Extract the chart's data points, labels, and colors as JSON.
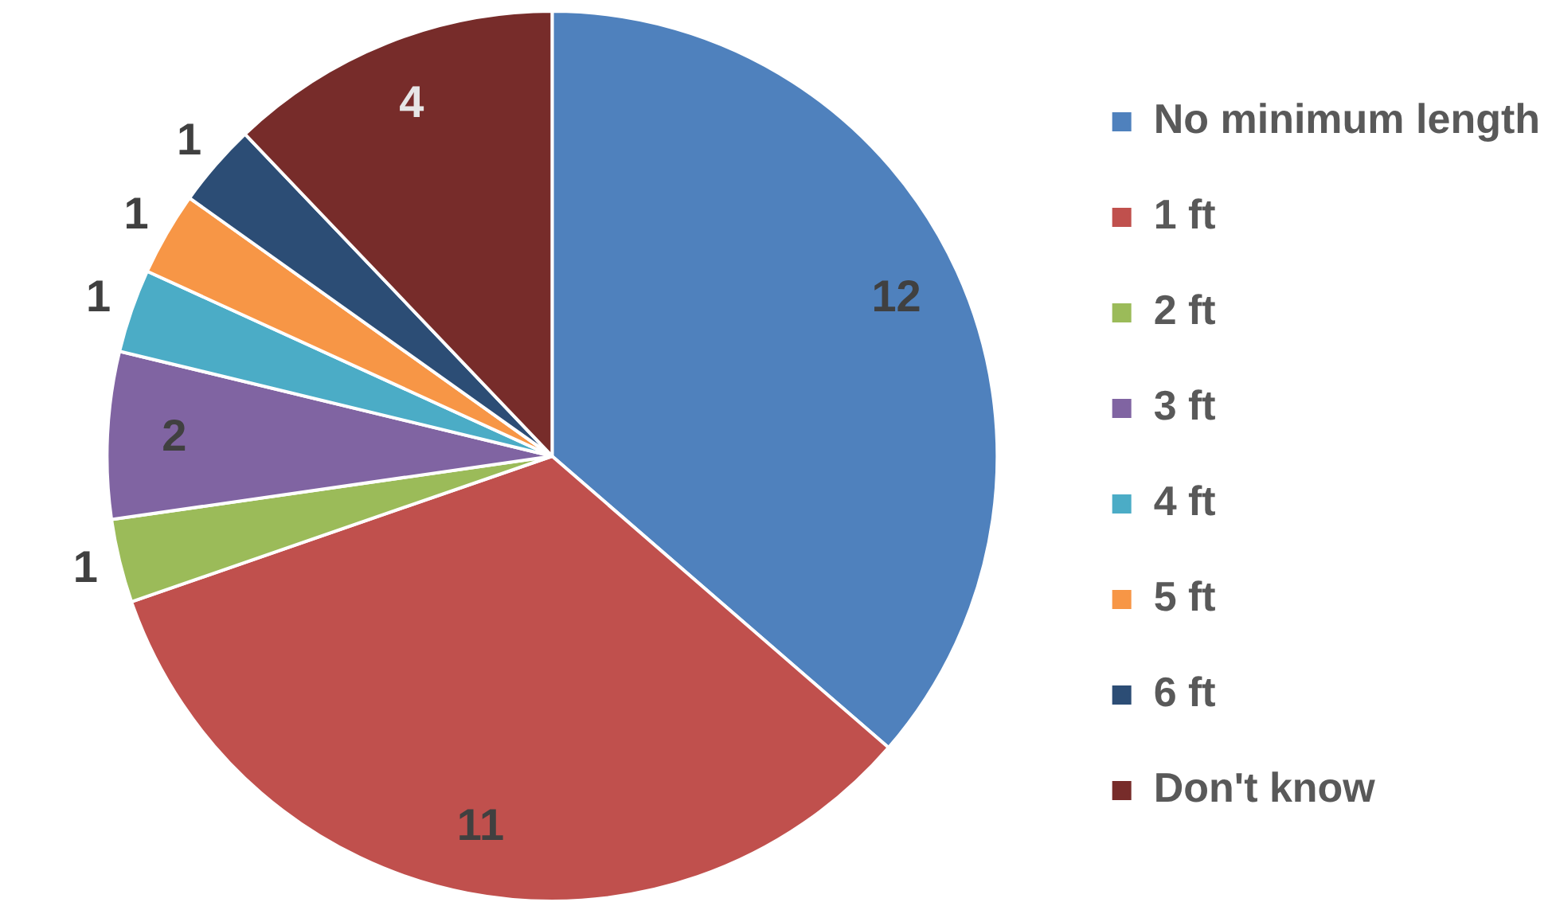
{
  "chart_data": {
    "type": "pie",
    "categories": [
      "No minimum length",
      "1 ft",
      "2 ft",
      "3 ft",
      "4 ft",
      "5 ft",
      "6 ft",
      "Don't know"
    ],
    "values": [
      12,
      11,
      1,
      2,
      1,
      1,
      1,
      4
    ],
    "colors": [
      "#4f81bd",
      "#c0504d",
      "#9bbb59",
      "#8064a2",
      "#4bacc6",
      "#f79646",
      "#2c4d75",
      "#772c2a"
    ],
    "data_labels": true,
    "legend": "right"
  }
}
